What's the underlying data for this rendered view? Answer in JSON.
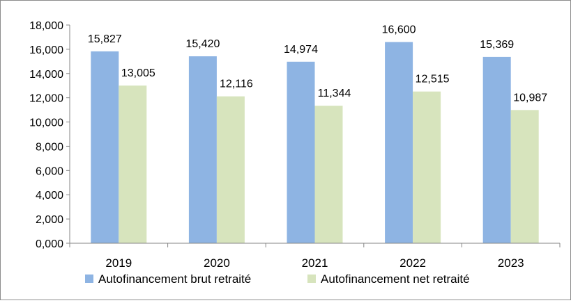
{
  "chart_data": {
    "type": "bar",
    "title": "",
    "xlabel": "",
    "ylabel": "",
    "categories": [
      "2019",
      "2020",
      "2021",
      "2022",
      "2023"
    ],
    "ylim": [
      0,
      18000
    ],
    "yticks": [
      0,
      2000,
      4000,
      6000,
      8000,
      10000,
      12000,
      14000,
      16000,
      18000
    ],
    "ytick_labels": [
      "0,000",
      "2,000",
      "4,000",
      "6,000",
      "8,000",
      "10,000",
      "12,000",
      "14,000",
      "16,000",
      "18,000"
    ],
    "grid": false,
    "legend_position": "bottom",
    "series": [
      {
        "name": "Autofinancement brut retraité",
        "color": "#8eb4e3",
        "values": [
          15827,
          15420,
          14974,
          16600,
          15369
        ],
        "labels": [
          "15,827",
          "15,420",
          "14,974",
          "16,600",
          "15,369"
        ]
      },
      {
        "name": "Autofinancement net retraité",
        "color": "#d7e4bd",
        "values": [
          13005,
          12116,
          11344,
          12515,
          10987
        ],
        "labels": [
          "13,005",
          "12,116",
          "11,344",
          "12,515",
          "10,987"
        ]
      }
    ]
  }
}
